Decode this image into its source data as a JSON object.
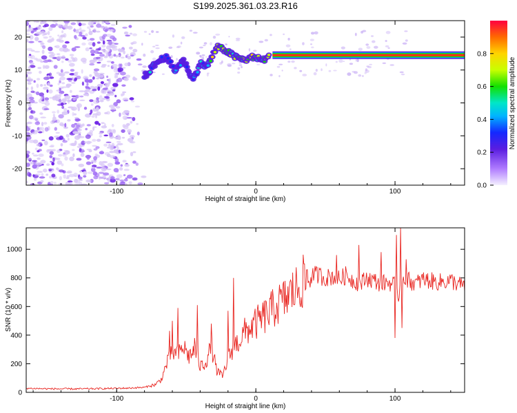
{
  "title": "S199.2025.361.03.23.R16",
  "colors": {
    "background": "#ffffff",
    "snr_line": "#e8231e",
    "spectro_purple": "#7a2fe0",
    "spectro_light": "#d7c2f5",
    "colormap": [
      "#f4f0ff",
      "#b07cff",
      "#5a1de0",
      "#1428ff",
      "#00b4ff",
      "#00e6c8",
      "#12e000",
      "#c8ff00",
      "#ffd400",
      "#ff6a00",
      "#ff0040"
    ]
  },
  "chart_data": [
    {
      "type": "heatmap",
      "xlabel": "Height of straight line (km)",
      "ylabel": "Frequency (Hz)",
      "xlim": [
        -165,
        150
      ],
      "ylim": [
        -25,
        25
      ],
      "xticks": [
        -100,
        0,
        100
      ],
      "yticks": [
        20,
        10,
        0,
        -10,
        -20
      ],
      "grid": false,
      "colorbar": {
        "label": "Normalized spectral amplitude",
        "range": [
          0.0,
          1.0
        ],
        "ticks": [
          "0.0",
          "0.2",
          "0.4",
          "0.6",
          "0.8"
        ]
      },
      "noise_region_x": [
        -165,
        -80
      ],
      "track": {
        "x": [
          -80,
          -72,
          -65,
          -58,
          -52,
          -45,
          -40,
          -35,
          -28,
          -22,
          -15,
          -8,
          -2,
          5,
          10,
          15,
          25,
          40,
          60,
          80,
          100,
          120,
          150
        ],
        "y": [
          8,
          12,
          14,
          10,
          13,
          7,
          12,
          11,
          17,
          16,
          14,
          13,
          14,
          13,
          14,
          14.5,
          14.5,
          14.5,
          14.5,
          14.5,
          14.5,
          14.5,
          14.5
        ],
        "amplitude": [
          0.3,
          0.35,
          0.3,
          0.35,
          0.3,
          0.3,
          0.35,
          0.45,
          0.75,
          0.6,
          0.55,
          0.7,
          0.65,
          0.6,
          0.7,
          0.85,
          0.9,
          0.95,
          0.95,
          0.95,
          0.95,
          0.95,
          0.95
        ]
      }
    },
    {
      "type": "line",
      "xlabel": "Height of straight line (km)",
      "ylabel": "SNR (10 * v/v)",
      "xlim": [
        -165,
        150
      ],
      "ylim": [
        0,
        1150
      ],
      "xticks": [
        -100,
        0,
        100
      ],
      "yticks": [
        0,
        200,
        400,
        600,
        800,
        1000
      ],
      "grid": false,
      "x": [
        -165,
        -150,
        -130,
        -110,
        -90,
        -80,
        -72,
        -68,
        -64,
        -60,
        -56,
        -52,
        -48,
        -44,
        -40,
        -36,
        -32,
        -28,
        -24,
        -20,
        -16,
        -12,
        -8,
        -4,
        0,
        5,
        10,
        15,
        20,
        25,
        30,
        35,
        40,
        45,
        50,
        55,
        60,
        65,
        70,
        75,
        80,
        85,
        90,
        95,
        100,
        102,
        105,
        110,
        115,
        120,
        130,
        140,
        150
      ],
      "y": [
        28,
        25,
        24,
        26,
        30,
        35,
        55,
        90,
        200,
        280,
        260,
        320,
        250,
        300,
        180,
        210,
        320,
        150,
        110,
        230,
        320,
        360,
        420,
        450,
        480,
        520,
        560,
        610,
        640,
        690,
        730,
        780,
        820,
        820,
        800,
        810,
        790,
        820,
        780,
        760,
        800,
        780,
        760,
        770,
        750,
        650,
        820,
        780,
        760,
        790,
        770,
        780,
        740
      ],
      "spikes": [
        {
          "x": -62,
          "y": 430
        },
        {
          "x": -60,
          "y": 500
        },
        {
          "x": -56,
          "y": 590
        },
        {
          "x": -44,
          "y": 380
        },
        {
          "x": -42,
          "y": 610
        },
        {
          "x": -32,
          "y": 480
        },
        {
          "x": -20,
          "y": 570
        },
        {
          "x": -16,
          "y": 800
        },
        {
          "x": 58,
          "y": 960
        },
        {
          "x": 74,
          "y": 1030
        },
        {
          "x": 90,
          "y": 980
        },
        {
          "x": 100,
          "y": 380
        },
        {
          "x": 101,
          "y": 1100
        },
        {
          "x": 104,
          "y": 1150
        },
        {
          "x": 105,
          "y": 450
        },
        {
          "x": 108,
          "y": 930
        }
      ]
    }
  ]
}
